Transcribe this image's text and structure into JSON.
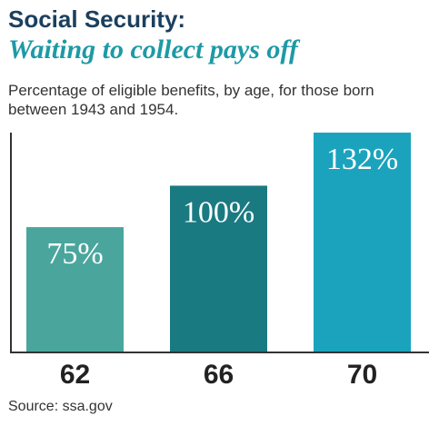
{
  "header": {
    "title": "Social Security:",
    "subtitle": "Waiting to collect pays off"
  },
  "description": "Percentage of eligible benefits, by age, for those born between 1943 and 1954.",
  "footer": {
    "source": "Source: ssa.gov"
  },
  "chart_data": {
    "type": "bar",
    "title": "Social Security:",
    "subtitle": "Waiting to collect pays off",
    "xlabel": "",
    "ylabel": "",
    "categories": [
      "62",
      "66",
      "70"
    ],
    "values": [
      75,
      100,
      132
    ],
    "data_labels": [
      "75%",
      "100%",
      "132%"
    ],
    "colors": [
      "#4aa69d",
      "#1a7a82",
      "#1ba3bd"
    ],
    "ylim": [
      0,
      132
    ],
    "grid": false,
    "legend": "none"
  }
}
